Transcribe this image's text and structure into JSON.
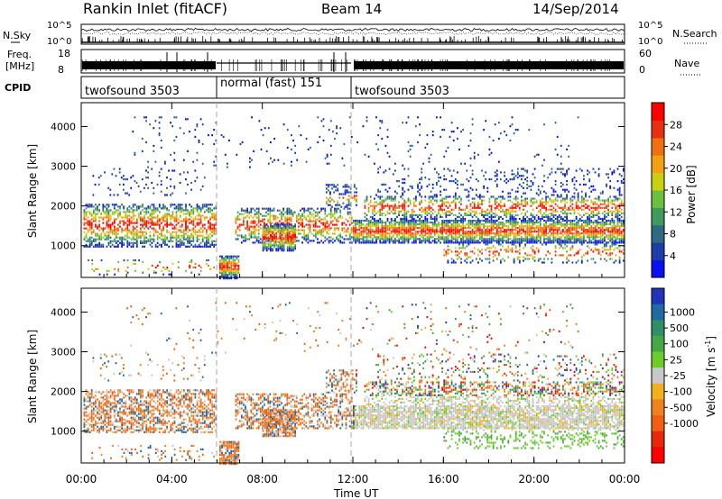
{
  "header": {
    "station": "Rankin Inlet (fitACF)",
    "beam": "Beam 14",
    "date": "14/Sep/2014"
  },
  "chart_data": [
    {
      "type": "line",
      "panel": "sky-noise",
      "ylabel_left": "N.Sky",
      "ylabel_right": "N.Search",
      "yticks_left": [
        "10^5",
        "10^0"
      ],
      "yticks_right": [
        "10^5",
        "10^0"
      ],
      "legend_right_marker": "dotted"
    },
    {
      "type": "line",
      "panel": "frequency-nave",
      "ylabel_left": "Freq.",
      "ylabel_left_unit": "[MHz]",
      "ylabel_right": "Nave",
      "yticks_left": [
        "18",
        "8"
      ],
      "yticks_right": [
        "60",
        "0"
      ],
      "legend_right_marker": "dotted"
    },
    {
      "type": "table",
      "panel": "cpid",
      "label": "CPID",
      "segments": [
        {
          "start": "00:00",
          "end": "06:00",
          "text": "twofsound 3503"
        },
        {
          "start": "06:00",
          "end": "12:00",
          "text": "normal (fast) 151"
        },
        {
          "start": "12:00",
          "end": "24:00",
          "text": "twofsound 3503"
        }
      ]
    },
    {
      "type": "heatmap",
      "panel": "power",
      "ylabel": "Slant Range [km]",
      "yticks": [
        1000,
        2000,
        3000,
        4000
      ],
      "ylim": [
        200,
        4600
      ],
      "colorbar": {
        "label": "Power [dB]",
        "ticks": [
          "4",
          "8",
          "12",
          "16",
          "20",
          "24",
          "28"
        ],
        "colors": [
          "#0a10f0",
          "#1f3da8",
          "#2e6b83",
          "#3f9a60",
          "#6cc040",
          "#c8d010",
          "#f0a010",
          "#f07010",
          "#e83010",
          "#ff0000"
        ]
      }
    },
    {
      "type": "heatmap",
      "panel": "velocity",
      "ylabel": "Slant Range [km]",
      "yticks": [
        1000,
        2000,
        3000,
        4000
      ],
      "ylim": [
        200,
        4600
      ],
      "colorbar": {
        "label": "Velocity  [m s",
        "label_sup": "-1",
        "label_end": "]",
        "ticks": [
          "1000",
          "500",
          "100",
          "25",
          "-25",
          "-100",
          "-500",
          "-1000"
        ],
        "colors": [
          "#2233bb",
          "#1f6aa0",
          "#2f8f66",
          "#45a845",
          "#6ccc2a",
          "#c8c8c8",
          "#f0b020",
          "#f08020",
          "#f06010",
          "#e82808",
          "#ff0000"
        ]
      }
    }
  ],
  "xaxis": {
    "label": "Time UT",
    "ticks": [
      "00:00",
      "04:00",
      "08:00",
      "12:00",
      "16:00",
      "20:00",
      "00:00"
    ]
  }
}
